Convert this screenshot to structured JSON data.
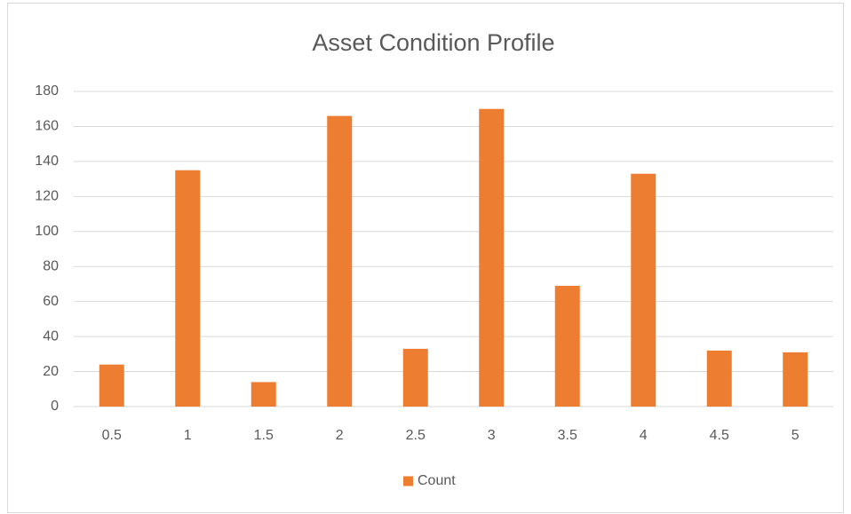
{
  "chart_data": {
    "type": "bar",
    "title": "Asset Condition Profile",
    "categories": [
      "0.5",
      "1",
      "1.5",
      "2",
      "2.5",
      "3",
      "3.5",
      "4",
      "4.5",
      "5"
    ],
    "series": [
      {
        "name": "Count",
        "color": "#ed7d31",
        "values": [
          24,
          135,
          14,
          166,
          33,
          170,
          69,
          133,
          32,
          31
        ]
      }
    ],
    "ylim": [
      0,
      180
    ],
    "yticks": [
      0,
      20,
      40,
      60,
      80,
      100,
      120,
      140,
      160,
      180
    ],
    "grid": true,
    "legend": "bottom"
  }
}
